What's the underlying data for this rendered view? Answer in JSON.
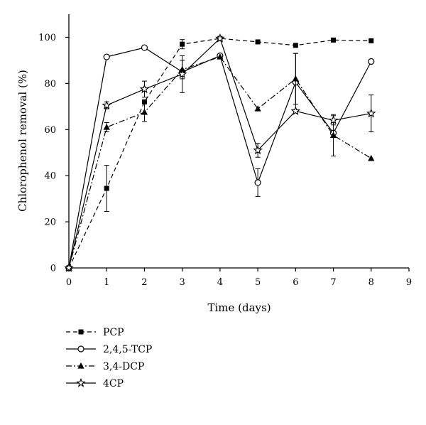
{
  "chart_data": {
    "type": "line",
    "title": "",
    "xlabel": "Time (days)",
    "ylabel": "Chlorophenol removal (%)",
    "xlim": [
      0,
      9
    ],
    "ylim": [
      0,
      110
    ],
    "x_ticks": [
      0,
      1,
      2,
      3,
      4,
      5,
      6,
      7,
      8,
      9
    ],
    "y_ticks": [
      0,
      20,
      40,
      60,
      80,
      100
    ],
    "grid": false,
    "legend_position": "bottom-left, below plot",
    "series": [
      {
        "name": "PCP",
        "line_style": "dashed",
        "marker": "filled-square",
        "x": [
          0,
          1,
          2,
          3,
          4,
          5,
          6,
          7,
          8
        ],
        "y": [
          0,
          34.5,
          72,
          97,
          99.5,
          98,
          96.5,
          98.8,
          98.5
        ],
        "err": [
          0,
          10,
          0,
          2,
          0,
          0,
          0,
          0,
          0
        ]
      },
      {
        "name": "2,4,5-TCP",
        "line_style": "solid",
        "marker": "open-circle",
        "x": [
          0,
          1,
          2,
          3,
          4,
          5,
          6,
          7,
          8
        ],
        "y": [
          0,
          91.5,
          95.5,
          85,
          92,
          37,
          80.5,
          58.5,
          89.5
        ],
        "err": [
          0,
          0,
          0,
          0,
          0,
          6,
          12.5,
          0,
          0
        ]
      },
      {
        "name": "3,4-DCP",
        "line_style": "dash-dot",
        "marker": "filled-triangle",
        "x": [
          0,
          1,
          2,
          3,
          4,
          5,
          6,
          7,
          8
        ],
        "y": [
          0,
          61,
          67.5,
          86,
          91.5,
          69,
          82,
          57.5,
          47.5
        ],
        "err": [
          0,
          2,
          4,
          4,
          0,
          0,
          11,
          9,
          0
        ]
      },
      {
        "name": "4CP",
        "line_style": "solid",
        "marker": "open-star",
        "x": [
          0,
          1,
          2,
          3,
          4,
          5,
          6,
          7,
          8
        ],
        "y": [
          0,
          70.5,
          77.5,
          84,
          99.5,
          51,
          68,
          64,
          67
        ],
        "err": [
          0,
          1.5,
          3.5,
          8,
          0,
          3,
          0,
          2,
          8
        ]
      }
    ]
  }
}
